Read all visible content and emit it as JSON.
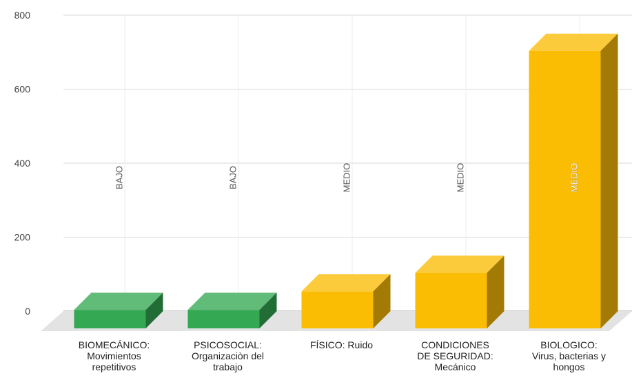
{
  "chart_data": {
    "type": "bar",
    "title": "",
    "xlabel": "",
    "ylabel": "",
    "ylim": [
      0,
      800
    ],
    "yticks": [
      0,
      200,
      400,
      600,
      800
    ],
    "grid": true,
    "categories": [
      [
        "BIOMECÁNICO:",
        "Movimientos",
        "repetitivos"
      ],
      [
        "PSICOSOCIAL:",
        "Organizaciòn del",
        "trabajo"
      ],
      [
        "FÍSICO: Ruido"
      ],
      [
        "CONDICIONES",
        "DE SEGURIDAD:",
        "Mecánico"
      ],
      [
        "BIOLOGICO:",
        "Virus, bacterias y",
        "hongos"
      ]
    ],
    "values": [
      50,
      50,
      100,
      150,
      750
    ],
    "data_labels": [
      "BAJO",
      "BAJO",
      "MEDIO",
      "MEDIO",
      "MEDIO"
    ],
    "colors": {
      "BAJO": "#34a853",
      "MEDIO": "#fbbc04"
    }
  }
}
